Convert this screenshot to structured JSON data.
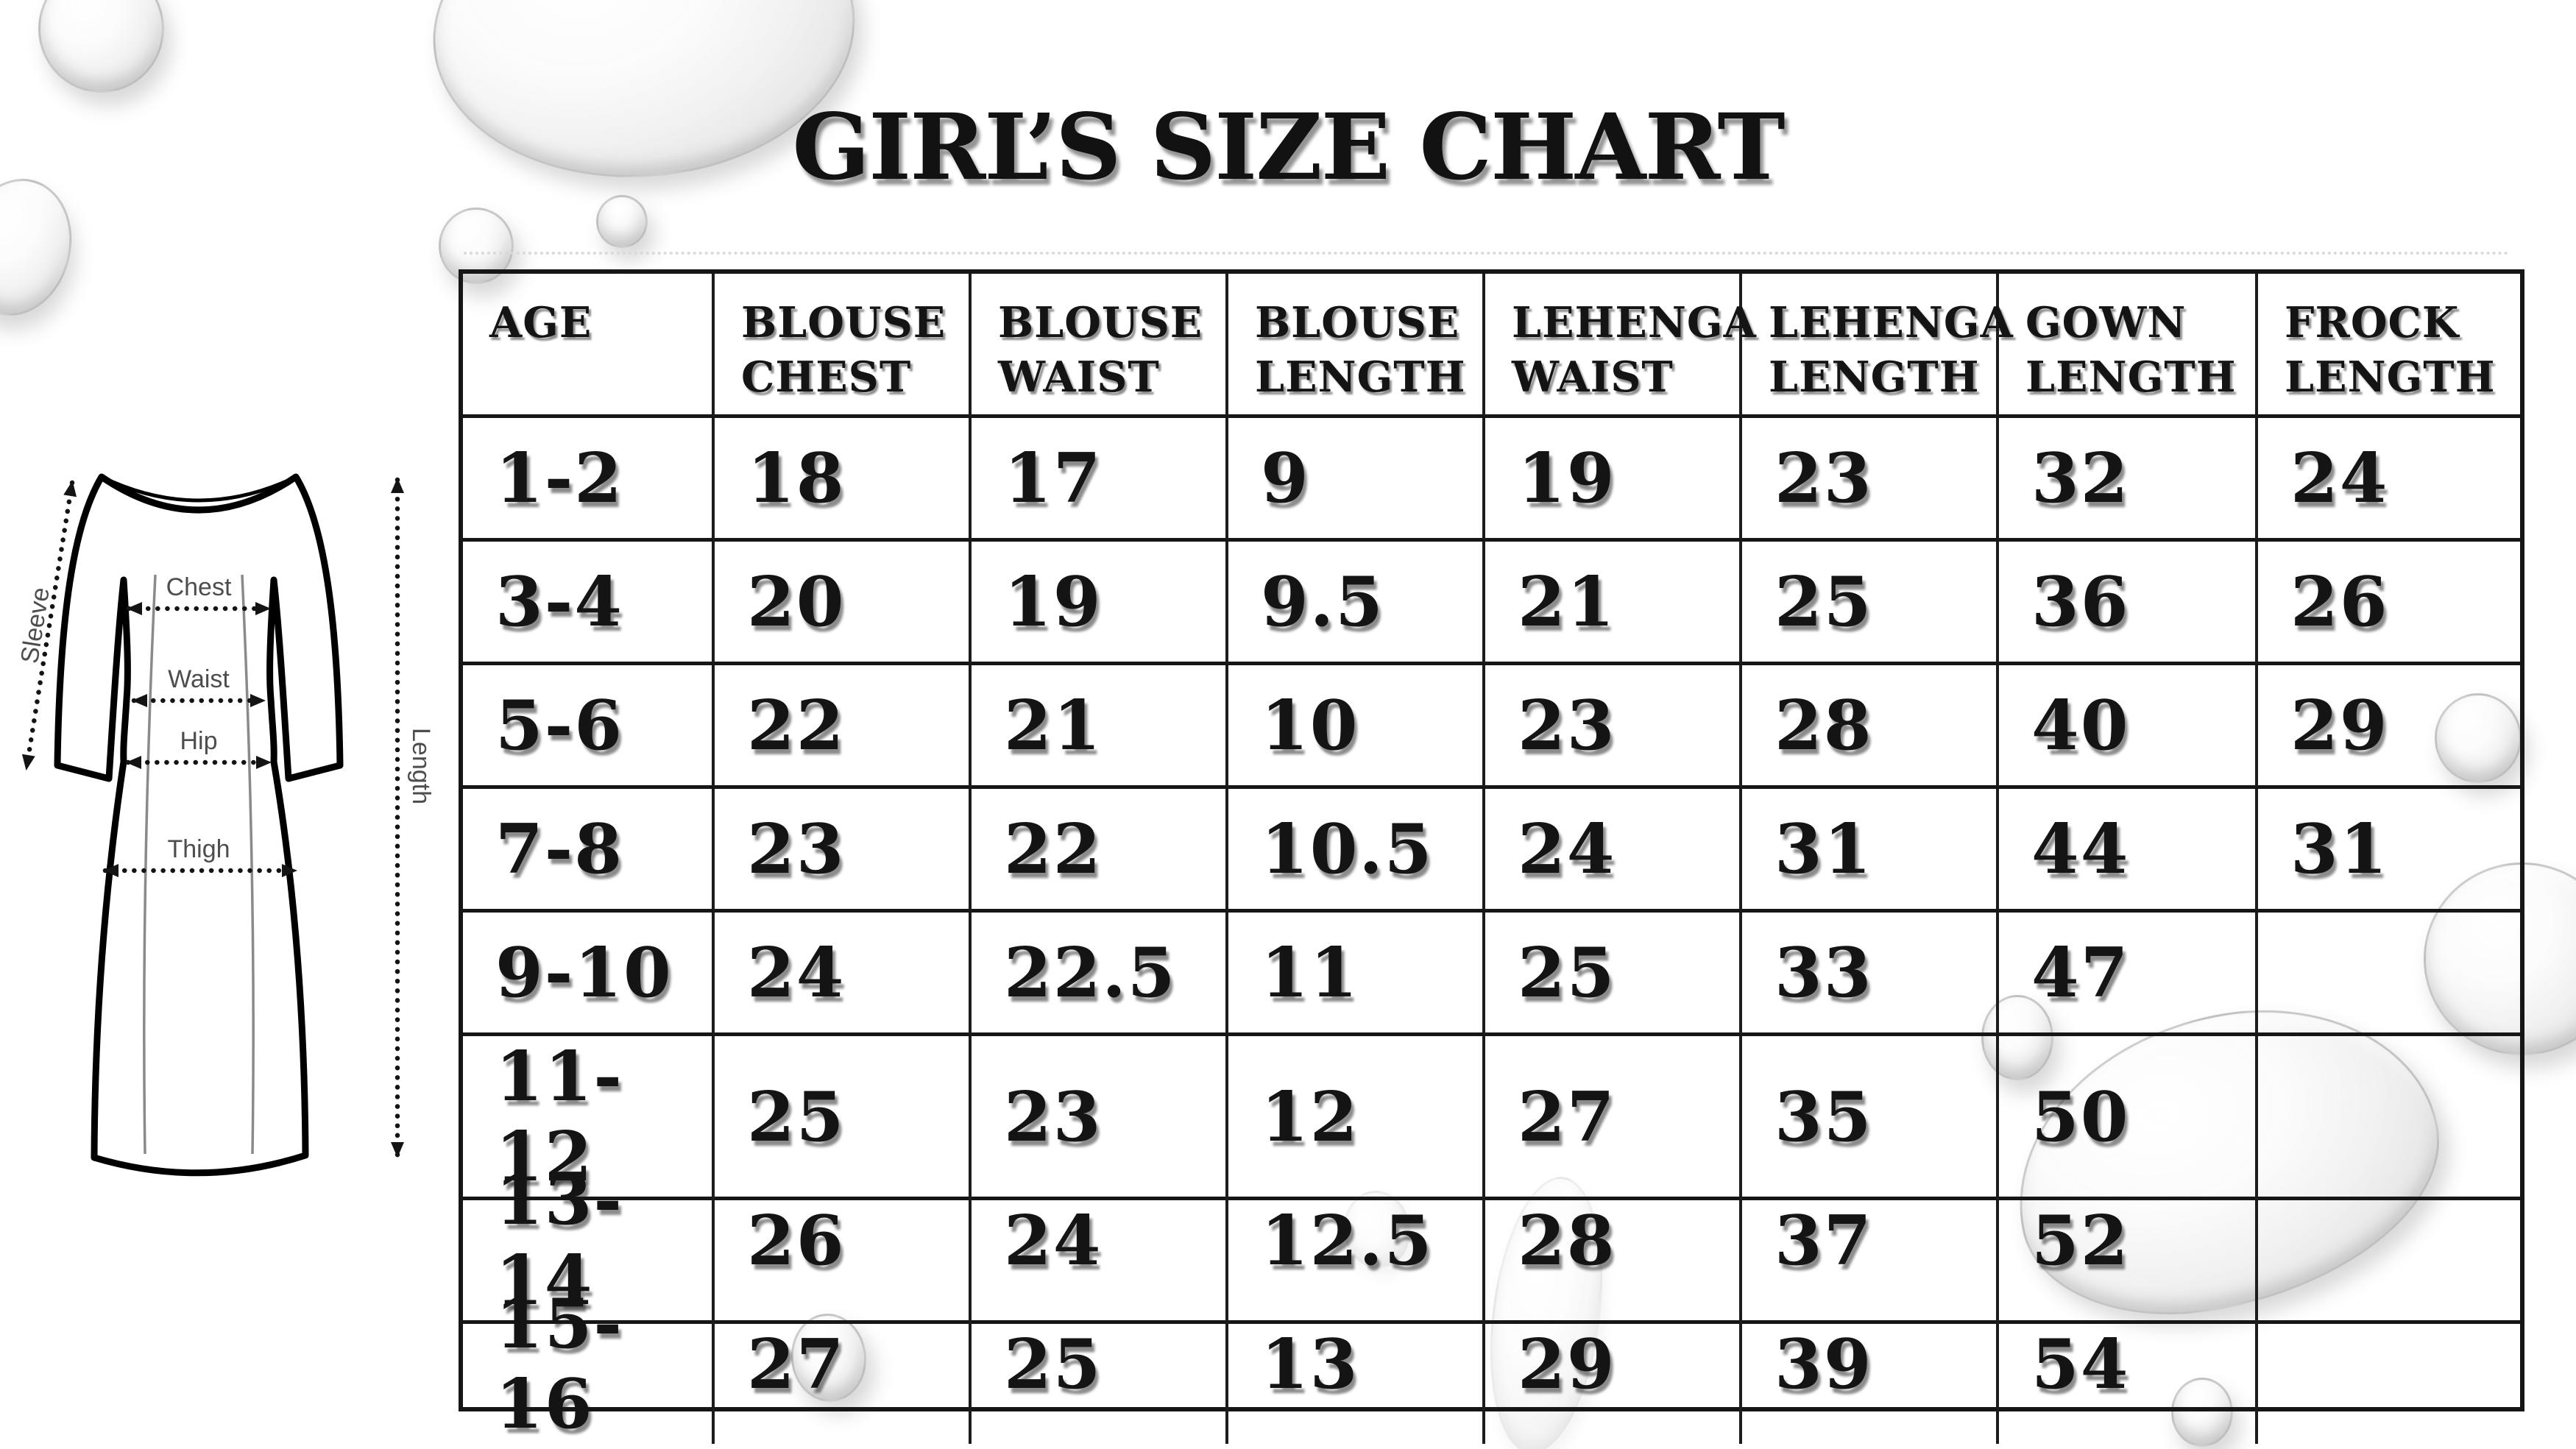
{
  "title": "GIRL’S SIZE CHART",
  "chart_data": {
    "type": "table",
    "title": "GIRL’S SIZE CHART",
    "columns": [
      "AGE",
      "BLOUSE CHEST",
      "BLOUSE WAIST",
      "BLOUSE LENGTH",
      "LEHENGA WAIST",
      "LEHENGA LENGTH",
      "GOWN LENGTH",
      "FROCK LENGTH"
    ],
    "rows": [
      [
        "1-2",
        "18",
        "17",
        "9",
        "19",
        "23",
        "32",
        "24"
      ],
      [
        "3-4",
        "20",
        "19",
        "9.5",
        "21",
        "25",
        "36",
        "26"
      ],
      [
        "5-6",
        "22",
        "21",
        "10",
        "23",
        "28",
        "40",
        "29"
      ],
      [
        "7-8",
        "23",
        "22",
        "10.5",
        "24",
        "31",
        "44",
        "31"
      ],
      [
        "9-10",
        "24",
        "22.5",
        "11",
        "25",
        "33",
        "47",
        ""
      ],
      [
        "11-12",
        "25",
        "23",
        "12",
        "27",
        "35",
        "50",
        ""
      ],
      [
        "13-14",
        "26",
        "24",
        "12.5",
        "28",
        "37",
        "52",
        ""
      ],
      [
        "15-16",
        "27",
        "25",
        "13",
        "29",
        "39",
        "54",
        ""
      ]
    ],
    "legend_position": "none",
    "grid": true
  },
  "diagram": {
    "type": "dress-measurement-sketch",
    "labels": {
      "sleeve": "Sleeve",
      "chest": "Chest",
      "waist": "Waist",
      "hip": "Hip",
      "thigh": "Thigh",
      "length": "Length"
    }
  },
  "decor": {
    "droplet_icon": "water-droplet"
  },
  "colors": {
    "ink": "#141414",
    "grid_line": "#1c1c1c",
    "diagram_label_gray": "#4d4d4d",
    "background": "#ffffff"
  }
}
